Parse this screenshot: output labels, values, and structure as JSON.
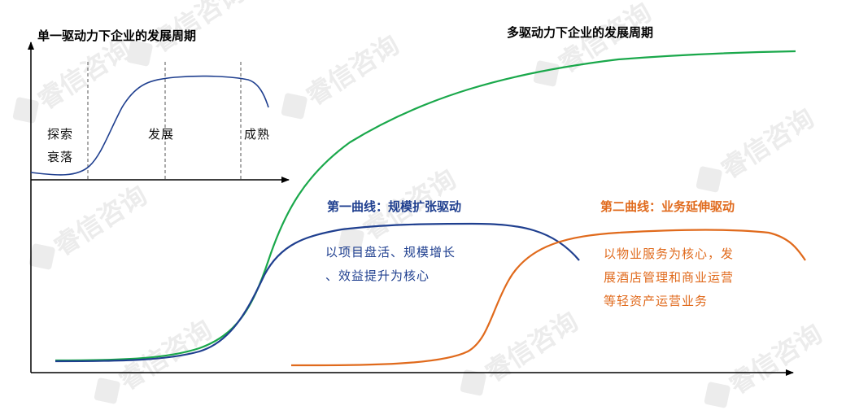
{
  "watermark": {
    "text": "睿信咨询"
  },
  "single_driver": {
    "title": "单一驱动力下企业的发展周期",
    "phases": [
      "探索",
      "衰落",
      "发展",
      "成熟"
    ]
  },
  "multi_driver": {
    "title": "多驱动力下企业的发展周期"
  },
  "curve1": {
    "heading": "第一曲线：规模扩张驱动",
    "lines": [
      "以项目盘活、规模增长",
      "、效益提升为核心"
    ],
    "color": "#1f3f8f"
  },
  "curve2": {
    "heading": "第二曲线：业务延伸驱动",
    "lines": [
      "以物业服务为核心，发",
      "展酒店管理和商业运营",
      "等轻资产运营业务"
    ],
    "color": "#e06a1c"
  },
  "overall_curve": {
    "color": "#1aa84b"
  }
}
